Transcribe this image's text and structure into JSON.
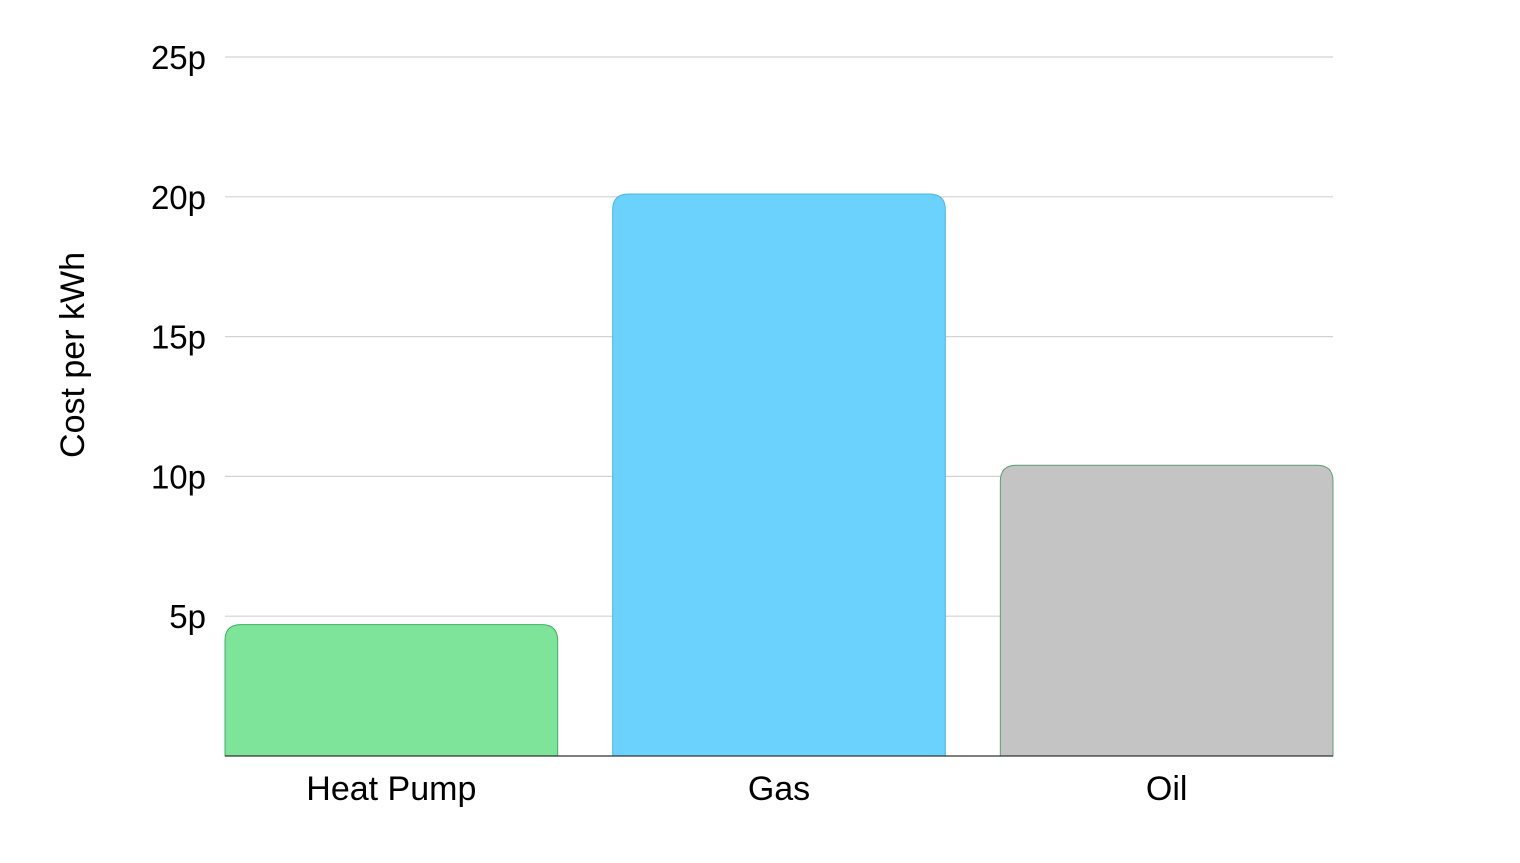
{
  "chart_data": {
    "type": "bar",
    "title": "",
    "xlabel": "",
    "ylabel": "Cost per kWh",
    "categories": [
      "Heat Pump",
      "Gas",
      "Oil"
    ],
    "values": [
      4.7,
      20.1,
      10.4
    ],
    "colors": [
      "#7ee49a",
      "#6ad2fc",
      "#c4c4c4"
    ],
    "border_colors": [
      "#3fae63",
      "#4cb6de",
      "#5f9f7a"
    ],
    "ylim": [
      0,
      25
    ],
    "yticks": [
      5,
      10,
      15,
      20,
      25
    ],
    "ytick_labels": [
      "5p",
      "10p",
      "15p",
      "20p",
      "25p"
    ],
    "grid": true,
    "legend": "none"
  }
}
